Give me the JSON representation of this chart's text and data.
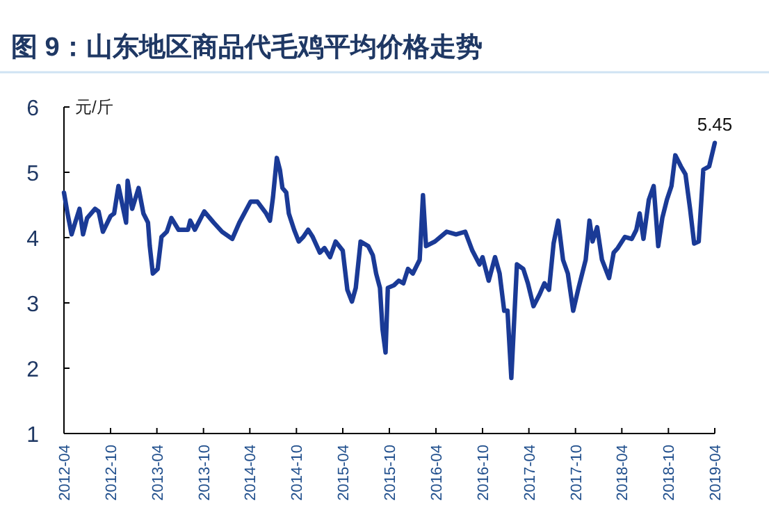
{
  "chart_data": {
    "type": "line",
    "title": "图 9：山东地区商品代毛鸡平均价格走势",
    "ylabel": "元/斤",
    "x": [
      "2012-04-01",
      "2012-04-15",
      "2012-05-01",
      "2012-05-15",
      "2012-06-01",
      "2012-06-15",
      "2012-07-01",
      "2012-08-01",
      "2012-08-15",
      "2012-09-01",
      "2012-10-01",
      "2012-10-15",
      "2012-11-01",
      "2012-12-01",
      "2012-12-07",
      "2012-12-25",
      "2013-01-19",
      "2013-02-07",
      "2013-02-25",
      "2013-03-04",
      "2013-03-16",
      "2013-04-04",
      "2013-04-19",
      "2013-05-10",
      "2013-05-28",
      "2013-06-25",
      "2013-08-01",
      "2013-08-10",
      "2013-08-28",
      "2013-10-04",
      "2013-11-10",
      "2013-12-13",
      "2014-01-22",
      "2014-02-19",
      "2014-04-04",
      "2014-05-01",
      "2014-06-04",
      "2014-06-19",
      "2014-07-01",
      "2014-07-16",
      "2014-07-28",
      "2014-08-07",
      "2014-08-22",
      "2014-09-01",
      "2014-09-22",
      "2014-10-10",
      "2014-10-28",
      "2014-11-16",
      "2014-12-04",
      "2015-01-01",
      "2015-01-19",
      "2015-02-10",
      "2015-03-04",
      "2015-04-01",
      "2015-04-19",
      "2015-05-07",
      "2015-05-22",
      "2015-06-10",
      "2015-07-10",
      "2015-07-28",
      "2015-08-10",
      "2015-08-25",
      "2015-09-04",
      "2015-09-16",
      "2015-09-25",
      "2015-10-19",
      "2015-11-07",
      "2015-11-25",
      "2015-12-13",
      "2016-01-01",
      "2016-01-28",
      "2016-02-10",
      "2016-02-22",
      "2016-03-28",
      "2016-05-13",
      "2016-06-19",
      "2016-07-25",
      "2016-08-22",
      "2016-09-19",
      "2016-10-01",
      "2016-10-25",
      "2016-11-19",
      "2016-12-07",
      "2016-12-25",
      "2017-01-07",
      "2017-01-22",
      "2017-02-13",
      "2017-03-10",
      "2017-03-28",
      "2017-04-19",
      "2017-05-13",
      "2017-06-01",
      "2017-06-19",
      "2017-07-07",
      "2017-07-25",
      "2017-08-13",
      "2017-09-01",
      "2017-09-22",
      "2017-10-13",
      "2017-11-10",
      "2017-11-25",
      "2017-12-07",
      "2017-12-25",
      "2018-01-13",
      "2018-02-10",
      "2018-02-28",
      "2018-03-16",
      "2018-04-13",
      "2018-05-10",
      "2018-05-28",
      "2018-06-10",
      "2018-06-25",
      "2018-07-16",
      "2018-08-04",
      "2018-08-22",
      "2018-09-07",
      "2018-09-25",
      "2018-10-13",
      "2018-10-28",
      "2018-11-19",
      "2018-12-07",
      "2018-12-25",
      "2019-01-10",
      "2019-01-28",
      "2019-02-15",
      "2019-03-10",
      "2019-04-01"
    ],
    "series": [
      {
        "color": "#1a3a96",
        "values": [
          4.69,
          4.37,
          4.05,
          4.23,
          4.44,
          4.05,
          4.3,
          4.44,
          4.4,
          4.09,
          4.33,
          4.37,
          4.79,
          4.23,
          4.87,
          4.44,
          4.76,
          4.37,
          4.23,
          3.87,
          3.45,
          3.52,
          4.01,
          4.09,
          4.3,
          4.12,
          4.12,
          4.26,
          4.12,
          4.4,
          4.23,
          4.09,
          3.98,
          4.23,
          4.55,
          4.55,
          4.37,
          4.26,
          4.62,
          5.22,
          5.04,
          4.76,
          4.69,
          4.37,
          4.12,
          3.94,
          4.01,
          4.12,
          4.01,
          3.77,
          3.84,
          3.7,
          3.94,
          3.8,
          3.2,
          3.02,
          3.23,
          3.94,
          3.87,
          3.73,
          3.45,
          3.23,
          2.6,
          2.24,
          3.23,
          3.27,
          3.34,
          3.3,
          3.52,
          3.45,
          3.66,
          4.65,
          3.87,
          3.94,
          4.09,
          4.05,
          4.09,
          3.8,
          3.59,
          3.7,
          3.34,
          3.7,
          3.45,
          2.88,
          2.88,
          1.85,
          3.59,
          3.52,
          3.3,
          2.95,
          3.13,
          3.3,
          3.2,
          3.91,
          4.26,
          3.66,
          3.45,
          2.88,
          3.23,
          3.66,
          4.26,
          3.94,
          4.16,
          3.66,
          3.38,
          3.77,
          3.84,
          4.01,
          3.98,
          4.12,
          4.37,
          3.98,
          4.58,
          4.79,
          3.87,
          4.3,
          4.58,
          4.79,
          5.26,
          5.09,
          4.97,
          4.44,
          3.91,
          3.94,
          5.04,
          5.09,
          5.45
        ]
      }
    ],
    "xlim": [
      "2012-04",
      "2019-04"
    ],
    "xticks": [
      "2012-04",
      "2012-10",
      "2013-04",
      "2013-10",
      "2014-04",
      "2014-10",
      "2015-04",
      "2015-10",
      "2016-04",
      "2016-10",
      "2017-04",
      "2017-10",
      "2018-04",
      "2018-10",
      "2019-04"
    ],
    "ylim": [
      1,
      6
    ],
    "yticks": [
      1,
      2,
      3,
      4,
      5,
      6
    ],
    "annotations": [
      {
        "text": "5.45",
        "x": "2019-04-01",
        "y": 5.45
      }
    ]
  }
}
